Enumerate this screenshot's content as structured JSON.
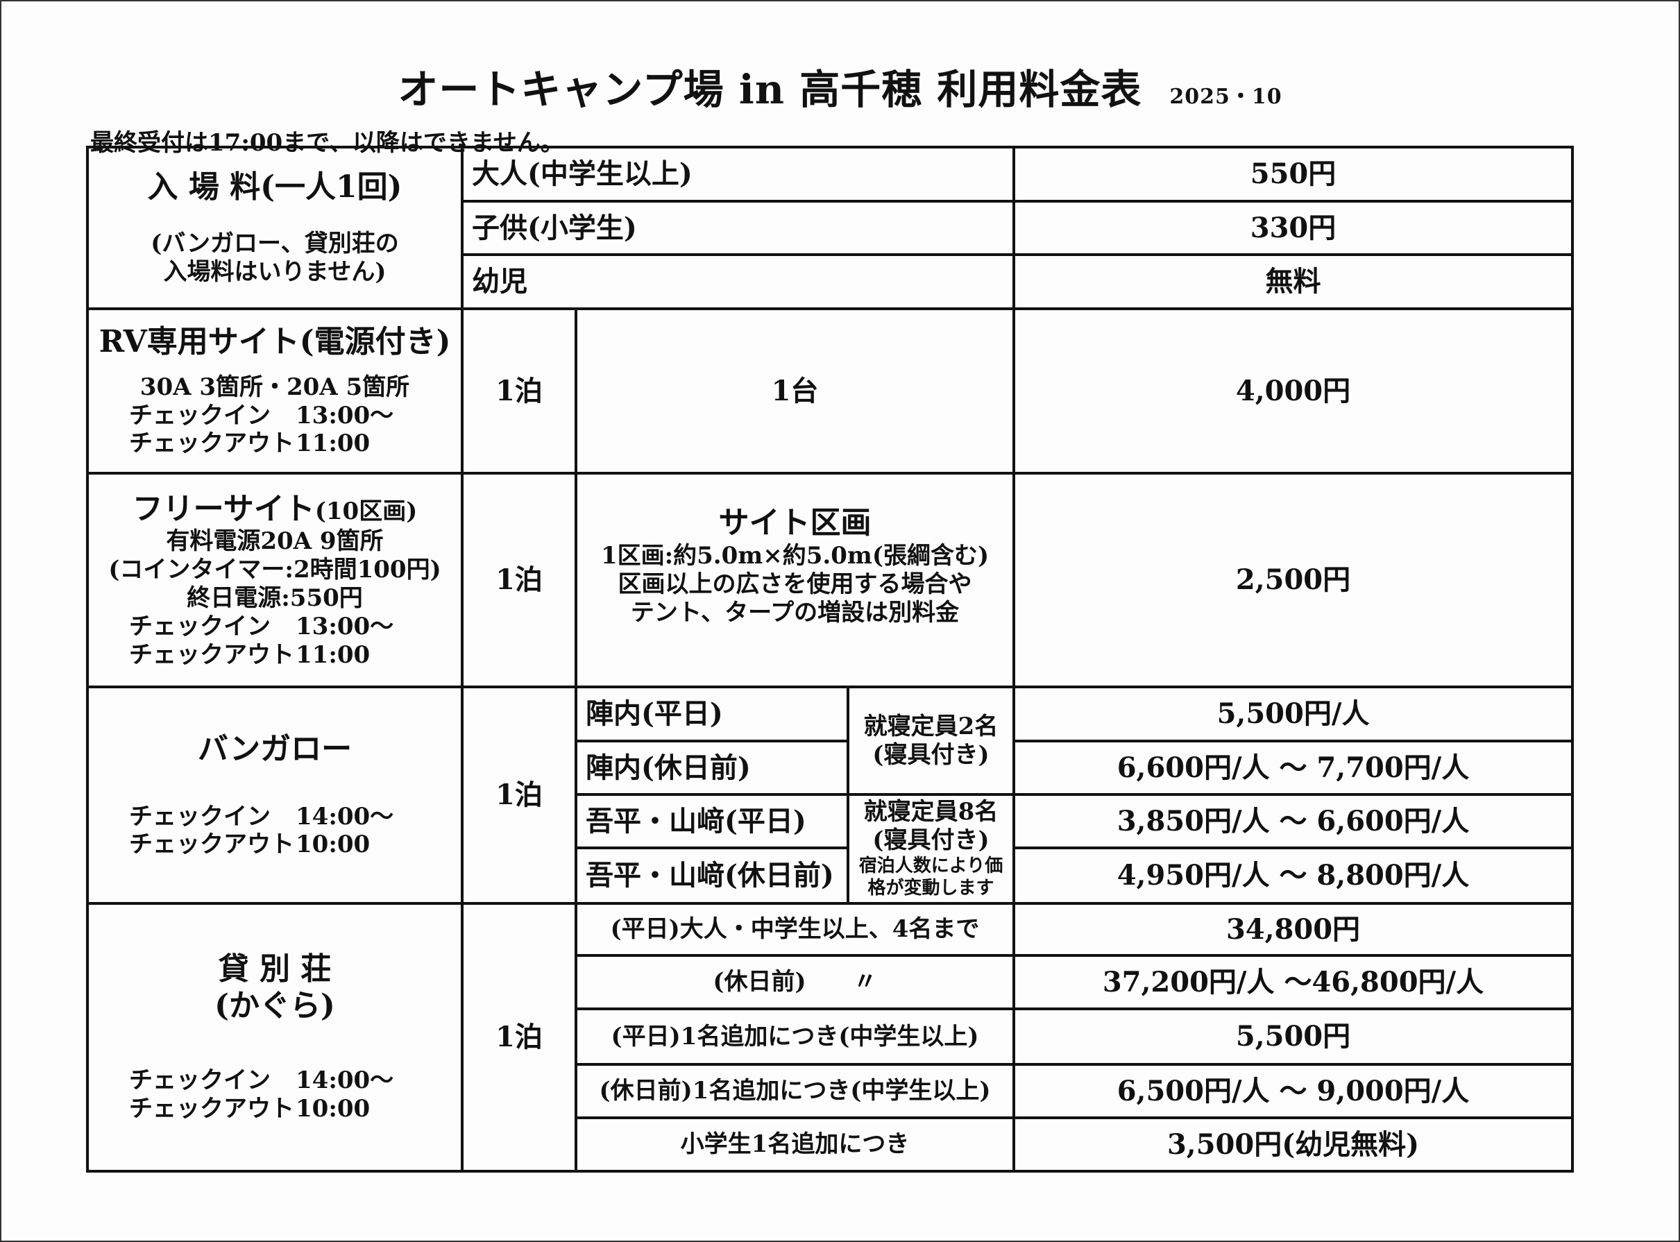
{
  "title": "オートキャンプ場 in 高千穂 利用料金表",
  "date": "2025・10",
  "note": "最終受付は17:00まで、以降はできません。",
  "entry": {
    "label": "入 場 料(一人1回)",
    "sub1": "(バンガロー、貸別荘の",
    "sub2": "入場料はいりません)",
    "rows": [
      {
        "label": "大人(中学生以上)",
        "price": "550円"
      },
      {
        "label": "子供(小学生)",
        "price": "330円"
      },
      {
        "label": "幼児",
        "price": "無料"
      }
    ]
  },
  "rv": {
    "label": "RV専用サイト(電源付き)",
    "power": "30A 3箇所・20A 5箇所",
    "checkin_label": "チェックイン",
    "checkin": "13:00〜",
    "checkout_label": "チェックアウト",
    "checkout": "11:00",
    "nights": "1泊",
    "unit": "1台",
    "price": "4,000円"
  },
  "free": {
    "label": "フリーサイト",
    "label_sub": "(10区画)",
    "power": "有料電源20A 9箇所",
    "coin": "(コインタイマー:2時間100円)",
    "allday": "終日電源:550円",
    "checkin_label": "チェックイン",
    "checkin": "13:00〜",
    "checkout_label": "チェックアウト",
    "checkout": "11:00",
    "nights": "1泊",
    "site_title": "サイト区画",
    "site_size": "1区画:約5.0m×約5.0m(張綱含む)",
    "site_note1": "区画以上の広さを使用する場合や",
    "site_note2": "テント、タープの増設は別料金",
    "price": "2,500円"
  },
  "bungalow": {
    "label": "バンガロー",
    "checkin_label": "チェックイン",
    "checkin": "14:00〜",
    "checkout_label": "チェックアウト",
    "checkout": "10:00",
    "nights": "1泊",
    "cap1a": "就寝定員2名",
    "cap1b": "(寝具付き)",
    "cap2a": "就寝定員8名",
    "cap2b": "(寝具付き)",
    "cap2c": "宿泊人数により価",
    "cap2d": "格が変動します",
    "rows": [
      {
        "label": "陣内(平日)",
        "price": "5,500円/人"
      },
      {
        "label": "陣内(休日前)",
        "price": "6,600円/人 〜 7,700円/人"
      },
      {
        "label": "吾平・山﨑(平日)",
        "price": "3,850円/人 〜 6,600円/人"
      },
      {
        "label": "吾平・山﨑(休日前)",
        "price": "4,950円/人 〜 8,800円/人"
      }
    ]
  },
  "villa": {
    "label": "貸 別 荘",
    "label_sub": "(かぐら)",
    "checkin_label": "チェックイン",
    "checkin": "14:00〜",
    "checkout_label": "チェックアウト",
    "checkout": "10:00",
    "nights": "1泊",
    "rows": [
      {
        "label": "(平日)大人・中学生以上、4名まで",
        "price": "34,800円"
      },
      {
        "label": "(休日前)　　〃",
        "price": "37,200円/人 〜46,800円/人"
      },
      {
        "label": "(平日)1名追加につき(中学生以上)",
        "price": "5,500円"
      },
      {
        "label": "(休日前)1名追加につき(中学生以上)",
        "price": "6,500円/人 〜 9,000円/人"
      },
      {
        "label": "小学生1名追加につき",
        "price": "3,500円(幼児無料)"
      }
    ]
  }
}
